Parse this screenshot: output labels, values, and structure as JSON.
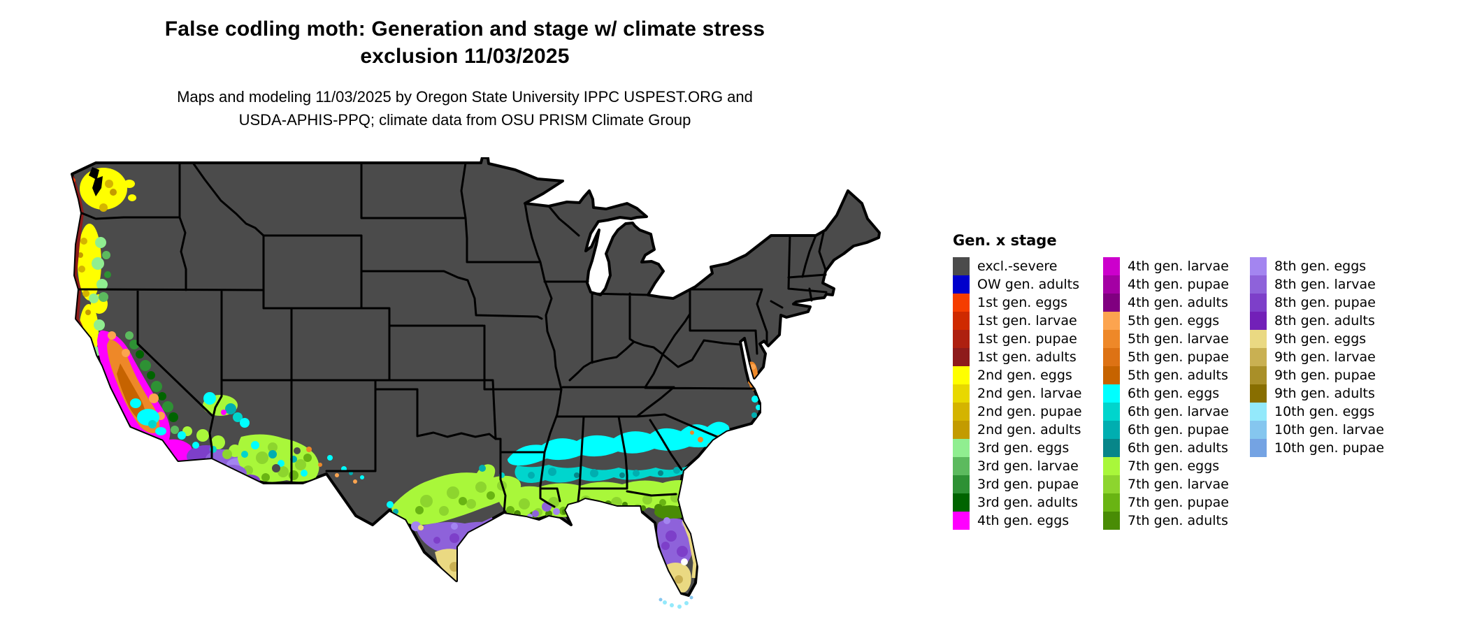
{
  "title": {
    "line1": "False codling moth: Generation and stage w/ climate stress",
    "line2": "exclusion 11/03/2025"
  },
  "subtitle": {
    "line1": "Maps and modeling 11/03/2025 by Oregon State University IPPC USPEST.ORG and",
    "line2": "USDA-APHIS-PPQ; climate data from OSU PRISM Climate Group"
  },
  "colors": {
    "map_border": "#000000",
    "water": "#ffffff",
    "excl": "#4b4b4b",
    "ow_adults": "#0000cc",
    "g1_eggs": "#f53d00",
    "g1_larvae": "#cf2a00",
    "g1_pupae": "#ae2010",
    "g1_adults": "#8e1b1b",
    "g2_eggs": "#ffff00",
    "g2_larvae": "#e8d800",
    "g2_pupae": "#d4b400",
    "g2_adults": "#c39b00",
    "g3_eggs": "#90ee90",
    "g3_larvae": "#5cba5e",
    "g3_pupae": "#2e9134",
    "g3_adults": "#006400",
    "g4_eggs": "#ff00ff",
    "g4_larvae": "#cc00cc",
    "g4_pupae": "#a400a4",
    "g4_adults": "#800080",
    "g5_eggs": "#fca44f",
    "g5_larvae": "#ee8828",
    "g5_pupae": "#dd7214",
    "g5_adults": "#c66300",
    "g6_eggs": "#00ffff",
    "g6_larvae": "#00d5cd",
    "g6_pupae": "#00aeb0",
    "g6_adults": "#078689",
    "g7_eggs": "#a9f73a",
    "g7_larvae": "#8dd52e",
    "g7_pupae": "#69b413",
    "g7_adults": "#498c05",
    "g8_eggs": "#a385f0",
    "g8_larvae": "#8e62da",
    "g8_pupae": "#7d3fc9",
    "g8_adults": "#7220b8",
    "g9_eggs": "#ead982",
    "g9_larvae": "#c9b052",
    "g9_pupae": "#a98f28",
    "g9_adults": "#886e00",
    "g10_eggs": "#93e9fb",
    "g10_larvae": "#85c6ef",
    "g10_pupae": "#74a3e3"
  },
  "legend": {
    "title": "Gen. x stage",
    "columns": [
      [
        {
          "label": "excl.-severe",
          "color": "#4b4b4b"
        },
        {
          "label": "OW gen. adults",
          "color": "#0000cc"
        },
        {
          "label": "1st gen. eggs",
          "color": "#f53d00"
        },
        {
          "label": "1st gen. larvae",
          "color": "#cf2a00"
        },
        {
          "label": "1st gen. pupae",
          "color": "#ae2010"
        },
        {
          "label": "1st gen. adults",
          "color": "#8e1b1b"
        },
        {
          "label": "2nd gen. eggs",
          "color": "#ffff00"
        },
        {
          "label": "2nd gen. larvae",
          "color": "#e8d800"
        },
        {
          "label": "2nd gen. pupae",
          "color": "#d4b400"
        },
        {
          "label": "2nd gen. adults",
          "color": "#c39b00"
        },
        {
          "label": "3rd gen. eggs",
          "color": "#90ee90"
        },
        {
          "label": "3rd gen. larvae",
          "color": "#5cba5e"
        },
        {
          "label": "3rd gen. pupae",
          "color": "#2e9134"
        },
        {
          "label": "3rd gen. adults",
          "color": "#006400"
        },
        {
          "label": "4th gen. eggs",
          "color": "#ff00ff"
        }
      ],
      [
        {
          "label": "4th gen. larvae",
          "color": "#cc00cc"
        },
        {
          "label": "4th gen. pupae",
          "color": "#a400a4"
        },
        {
          "label": "4th gen. adults",
          "color": "#800080"
        },
        {
          "label": "5th gen. eggs",
          "color": "#fca44f"
        },
        {
          "label": "5th gen. larvae",
          "color": "#ee8828"
        },
        {
          "label": "5th gen. pupae",
          "color": "#dd7214"
        },
        {
          "label": "5th gen. adults",
          "color": "#c66300"
        },
        {
          "label": "6th gen. eggs",
          "color": "#00ffff"
        },
        {
          "label": "6th gen. larvae",
          "color": "#00d5cd"
        },
        {
          "label": "6th gen. pupae",
          "color": "#00aeb0"
        },
        {
          "label": "6th gen. adults",
          "color": "#078689"
        },
        {
          "label": "7th gen. eggs",
          "color": "#a9f73a"
        },
        {
          "label": "7th gen. larvae",
          "color": "#8dd52e"
        },
        {
          "label": "7th gen. pupae",
          "color": "#69b413"
        },
        {
          "label": "7th gen. adults",
          "color": "#498c05"
        }
      ],
      [
        {
          "label": "8th gen. eggs",
          "color": "#a385f0"
        },
        {
          "label": "8th gen. larvae",
          "color": "#8e62da"
        },
        {
          "label": "8th gen. pupae",
          "color": "#7d3fc9"
        },
        {
          "label": "8th gen. adults",
          "color": "#7220b8"
        },
        {
          "label": "9th gen. eggs",
          "color": "#ead982"
        },
        {
          "label": "9th gen. larvae",
          "color": "#c9b052"
        },
        {
          "label": "9th gen. pupae",
          "color": "#a98f28"
        },
        {
          "label": "9th gen. adults",
          "color": "#886e00"
        },
        {
          "label": "10th gen. eggs",
          "color": "#93e9fb"
        },
        {
          "label": "10th gen. larvae",
          "color": "#85c6ef"
        },
        {
          "label": "10th gen. pupae",
          "color": "#74a3e3"
        }
      ]
    ]
  },
  "map": {
    "description": "Contiguous United States pest generation/stage map; interior mostly excl.-severe gray; colored zones along Pacific coast, desert Southwest, southern Texas, Gulf Coast, Southeast and Florida",
    "painted_zones": [
      "pacific-northwest-coast",
      "california-central-valley",
      "southern-california-deserts",
      "southern-arizona",
      "southern-texas",
      "gulf-coast-band",
      "southeast-cyan-band",
      "florida-peninsula",
      "delmarva-orange-patch",
      "carolina-coast-specks"
    ]
  }
}
